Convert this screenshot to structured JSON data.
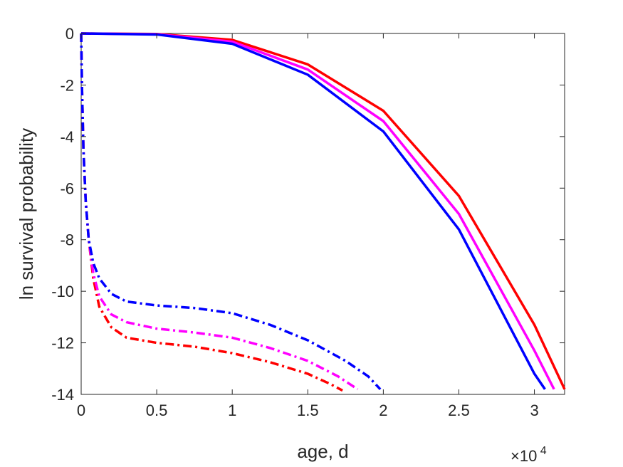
{
  "chart_data": {
    "type": "line",
    "xlabel": "age, d",
    "ylabel": "ln survival probability",
    "xlim": [
      0,
      32000
    ],
    "ylim": [
      -14,
      0
    ],
    "x_tick_values": [
      0,
      5000,
      10000,
      15000,
      20000,
      25000,
      30000
    ],
    "x_tick_labels": [
      "0",
      "0.5",
      "1",
      "1.5",
      "2",
      "2.5",
      "3"
    ],
    "x_exponent": {
      "base": "×10",
      "power": "4"
    },
    "y_tick_values": [
      0,
      -2,
      -4,
      -6,
      -8,
      -10,
      -12,
      -14
    ],
    "y_tick_labels": [
      "0",
      "-2",
      "-4",
      "-6",
      "-8",
      "-10",
      "-12",
      "-14"
    ],
    "grid": false,
    "box": true,
    "series": [
      {
        "color": "#ff0000",
        "style": "solid",
        "points": [
          [
            0,
            0
          ],
          [
            5000,
            -0.02
          ],
          [
            10000,
            -0.25
          ],
          [
            15000,
            -1.2
          ],
          [
            20000,
            -3.0
          ],
          [
            25000,
            -6.3
          ],
          [
            30000,
            -11.3
          ],
          [
            32000,
            -13.8
          ]
        ]
      },
      {
        "color": "#ff00ff",
        "style": "solid",
        "points": [
          [
            0,
            0
          ],
          [
            5000,
            -0.03
          ],
          [
            10000,
            -0.32
          ],
          [
            15000,
            -1.4
          ],
          [
            20000,
            -3.4
          ],
          [
            25000,
            -7.0
          ],
          [
            30000,
            -12.3
          ],
          [
            31300,
            -13.8
          ]
        ]
      },
      {
        "color": "#0000ff",
        "style": "solid",
        "points": [
          [
            0,
            0
          ],
          [
            5000,
            -0.04
          ],
          [
            10000,
            -0.4
          ],
          [
            15000,
            -1.6
          ],
          [
            20000,
            -3.8
          ],
          [
            25000,
            -7.6
          ],
          [
            30000,
            -13.2
          ],
          [
            30700,
            -13.8
          ]
        ]
      },
      {
        "color": "#ff0000",
        "style": "dashdot",
        "points": [
          [
            0,
            0
          ],
          [
            50,
            -2
          ],
          [
            150,
            -4.5
          ],
          [
            300,
            -6.5
          ],
          [
            500,
            -8.0
          ],
          [
            800,
            -9.5
          ],
          [
            1200,
            -10.6
          ],
          [
            2000,
            -11.4
          ],
          [
            3000,
            -11.8
          ],
          [
            5000,
            -12.0
          ],
          [
            7500,
            -12.15
          ],
          [
            10000,
            -12.4
          ],
          [
            12500,
            -12.75
          ],
          [
            15000,
            -13.2
          ],
          [
            16500,
            -13.6
          ],
          [
            17300,
            -13.85
          ]
        ]
      },
      {
        "color": "#ff00ff",
        "style": "dashdot",
        "points": [
          [
            0,
            0
          ],
          [
            50,
            -2
          ],
          [
            150,
            -4.5
          ],
          [
            300,
            -6.5
          ],
          [
            500,
            -8.0
          ],
          [
            800,
            -9.3
          ],
          [
            1200,
            -10.2
          ],
          [
            2000,
            -10.9
          ],
          [
            3000,
            -11.2
          ],
          [
            5000,
            -11.45
          ],
          [
            7500,
            -11.6
          ],
          [
            10000,
            -11.8
          ],
          [
            12500,
            -12.2
          ],
          [
            15000,
            -12.7
          ],
          [
            17000,
            -13.3
          ],
          [
            18300,
            -13.8
          ]
        ]
      },
      {
        "color": "#0000ff",
        "style": "dashdot",
        "points": [
          [
            0,
            0
          ],
          [
            50,
            -2
          ],
          [
            150,
            -4.5
          ],
          [
            300,
            -6.5
          ],
          [
            500,
            -8.0
          ],
          [
            800,
            -8.9
          ],
          [
            1200,
            -9.5
          ],
          [
            2000,
            -10.1
          ],
          [
            3000,
            -10.4
          ],
          [
            5000,
            -10.55
          ],
          [
            7500,
            -10.65
          ],
          [
            10000,
            -10.85
          ],
          [
            12500,
            -11.3
          ],
          [
            15000,
            -11.9
          ],
          [
            17500,
            -12.7
          ],
          [
            19000,
            -13.3
          ],
          [
            19800,
            -13.8
          ]
        ]
      }
    ]
  }
}
